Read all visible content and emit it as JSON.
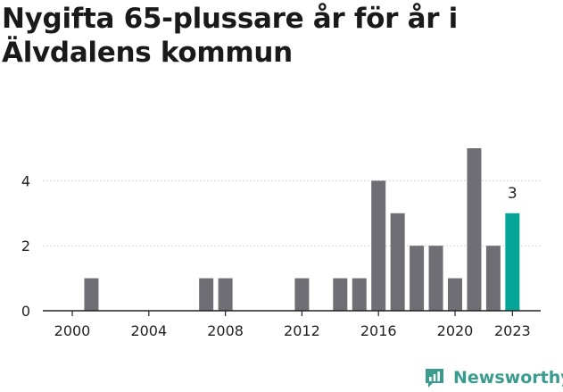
{
  "title": "Nygifta 65-plussare år för år i Älvdalens kommun",
  "brand": {
    "name": "Newsworthy"
  },
  "colors": {
    "bar": "#6f6e75",
    "highlight": "#05a597",
    "axis": "#222222",
    "grid": "#c9c9c9",
    "brand": "#3a9c8e"
  },
  "chart_data": {
    "type": "bar",
    "title": "Nygifta 65-plussare år för år i Älvdalens kommun",
    "xlabel": "",
    "ylabel": "",
    "categories": [
      2000,
      2001,
      2002,
      2003,
      2004,
      2005,
      2006,
      2007,
      2008,
      2009,
      2010,
      2011,
      2012,
      2013,
      2014,
      2015,
      2016,
      2017,
      2018,
      2019,
      2020,
      2021,
      2022,
      2023
    ],
    "values": [
      0,
      1,
      0,
      0,
      0,
      0,
      0,
      1,
      1,
      0,
      0,
      0,
      1,
      0,
      1,
      1,
      4,
      3,
      2,
      2,
      1,
      5,
      2,
      3
    ],
    "highlight_index": 23,
    "highlight_label": "3",
    "ylim": [
      0,
      5
    ],
    "yticks": [
      0,
      2,
      4
    ],
    "xticks": [
      2000,
      2004,
      2008,
      2012,
      2016,
      2020,
      2023
    ],
    "grid": true
  }
}
